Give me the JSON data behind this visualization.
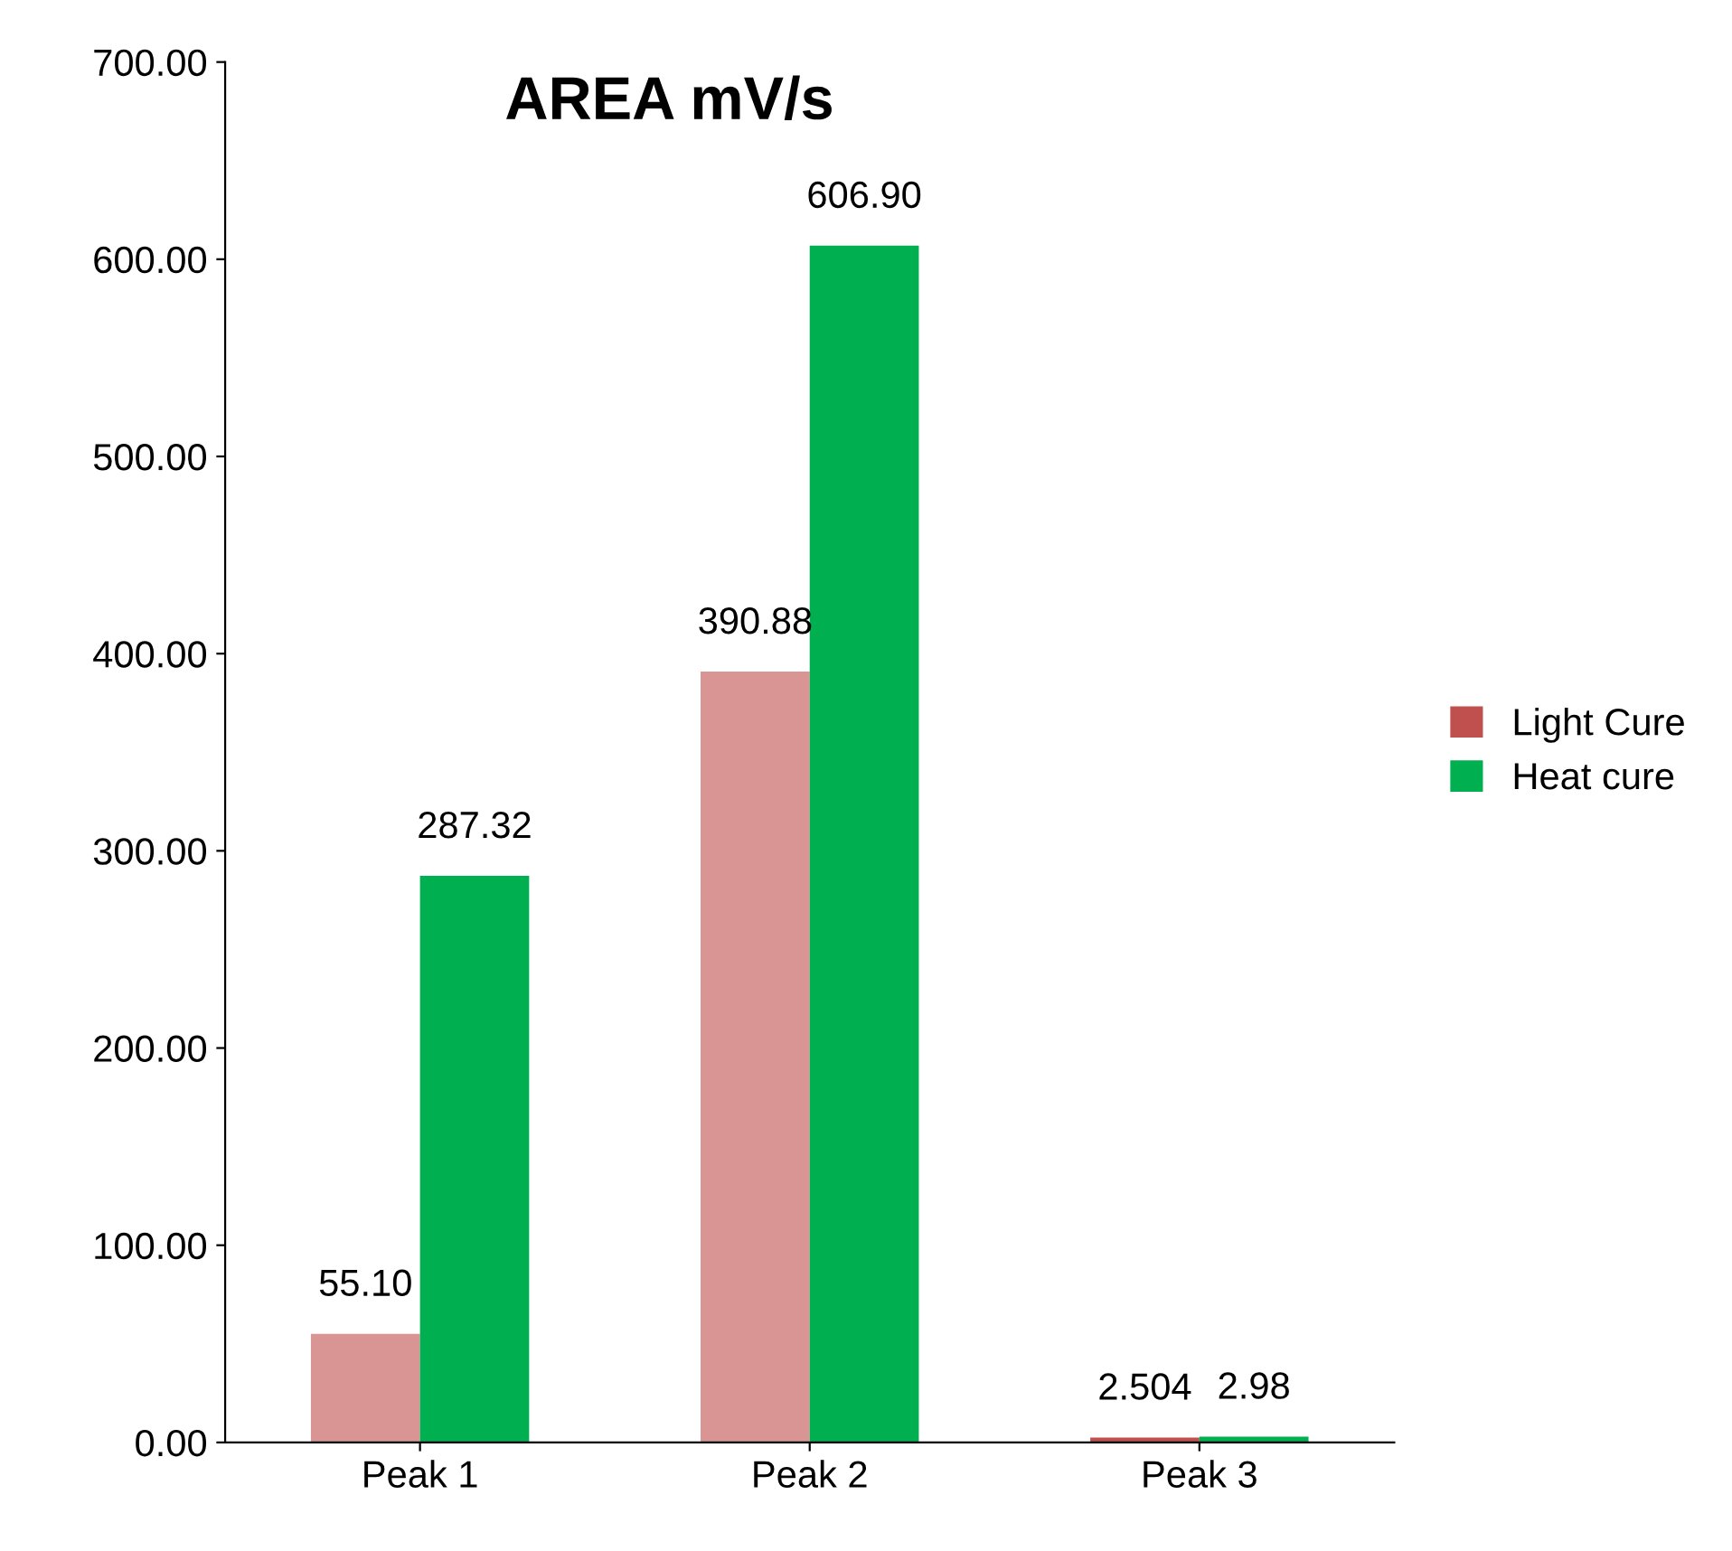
{
  "chart_data": {
    "type": "bar",
    "title": "AREA mV/s",
    "categories": [
      "Peak 1",
      "Peak 2",
      "Peak 3"
    ],
    "series": [
      {
        "name": "Light Cure",
        "color": "#c0504d",
        "colors": [
          "#d99594",
          "#d99594",
          "#c0504d"
        ],
        "values": [
          55.1,
          390.88,
          2.504
        ],
        "value_labels": [
          "55.10",
          "390.88",
          "2.504"
        ]
      },
      {
        "name": "Heat cure",
        "color": "#00b050",
        "values": [
          287.32,
          606.9,
          2.98
        ],
        "value_labels": [
          "287.32",
          "606.90",
          "2.98"
        ]
      }
    ],
    "ylim": [
      0,
      700
    ],
    "yticks": [
      {
        "value": 0,
        "label": "0.00"
      },
      {
        "value": 100,
        "label": "100.00"
      },
      {
        "value": 200,
        "label": "200.00"
      },
      {
        "value": 300,
        "label": "300.00"
      },
      {
        "value": 400,
        "label": "400.00"
      },
      {
        "value": 500,
        "label": "500.00"
      },
      {
        "value": 600,
        "label": "600.00"
      },
      {
        "value": 700,
        "label": "700.00"
      }
    ],
    "grid": false,
    "legend": "right"
  }
}
